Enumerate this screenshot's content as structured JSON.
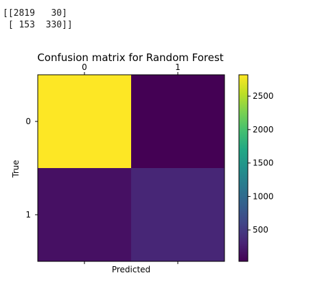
{
  "console": {
    "line1": "[[2819   30]",
    "line2": " [ 153  330]]"
  },
  "chart_data": {
    "type": "heatmap",
    "title": "Confusion matrix for Random Forest",
    "xlabel": "Predicted",
    "ylabel": "True",
    "x_categories": [
      "0",
      "1"
    ],
    "y_categories": [
      "0",
      "1"
    ],
    "matrix": [
      [
        2819,
        30
      ],
      [
        153,
        330
      ]
    ],
    "colormap": "viridis",
    "colorbar": {
      "min": 30,
      "max": 2819,
      "ticks": [
        500,
        1000,
        1500,
        2000,
        2500
      ],
      "tick_labels": [
        "500",
        "1000",
        "1500",
        "2000",
        "2500"
      ]
    }
  }
}
